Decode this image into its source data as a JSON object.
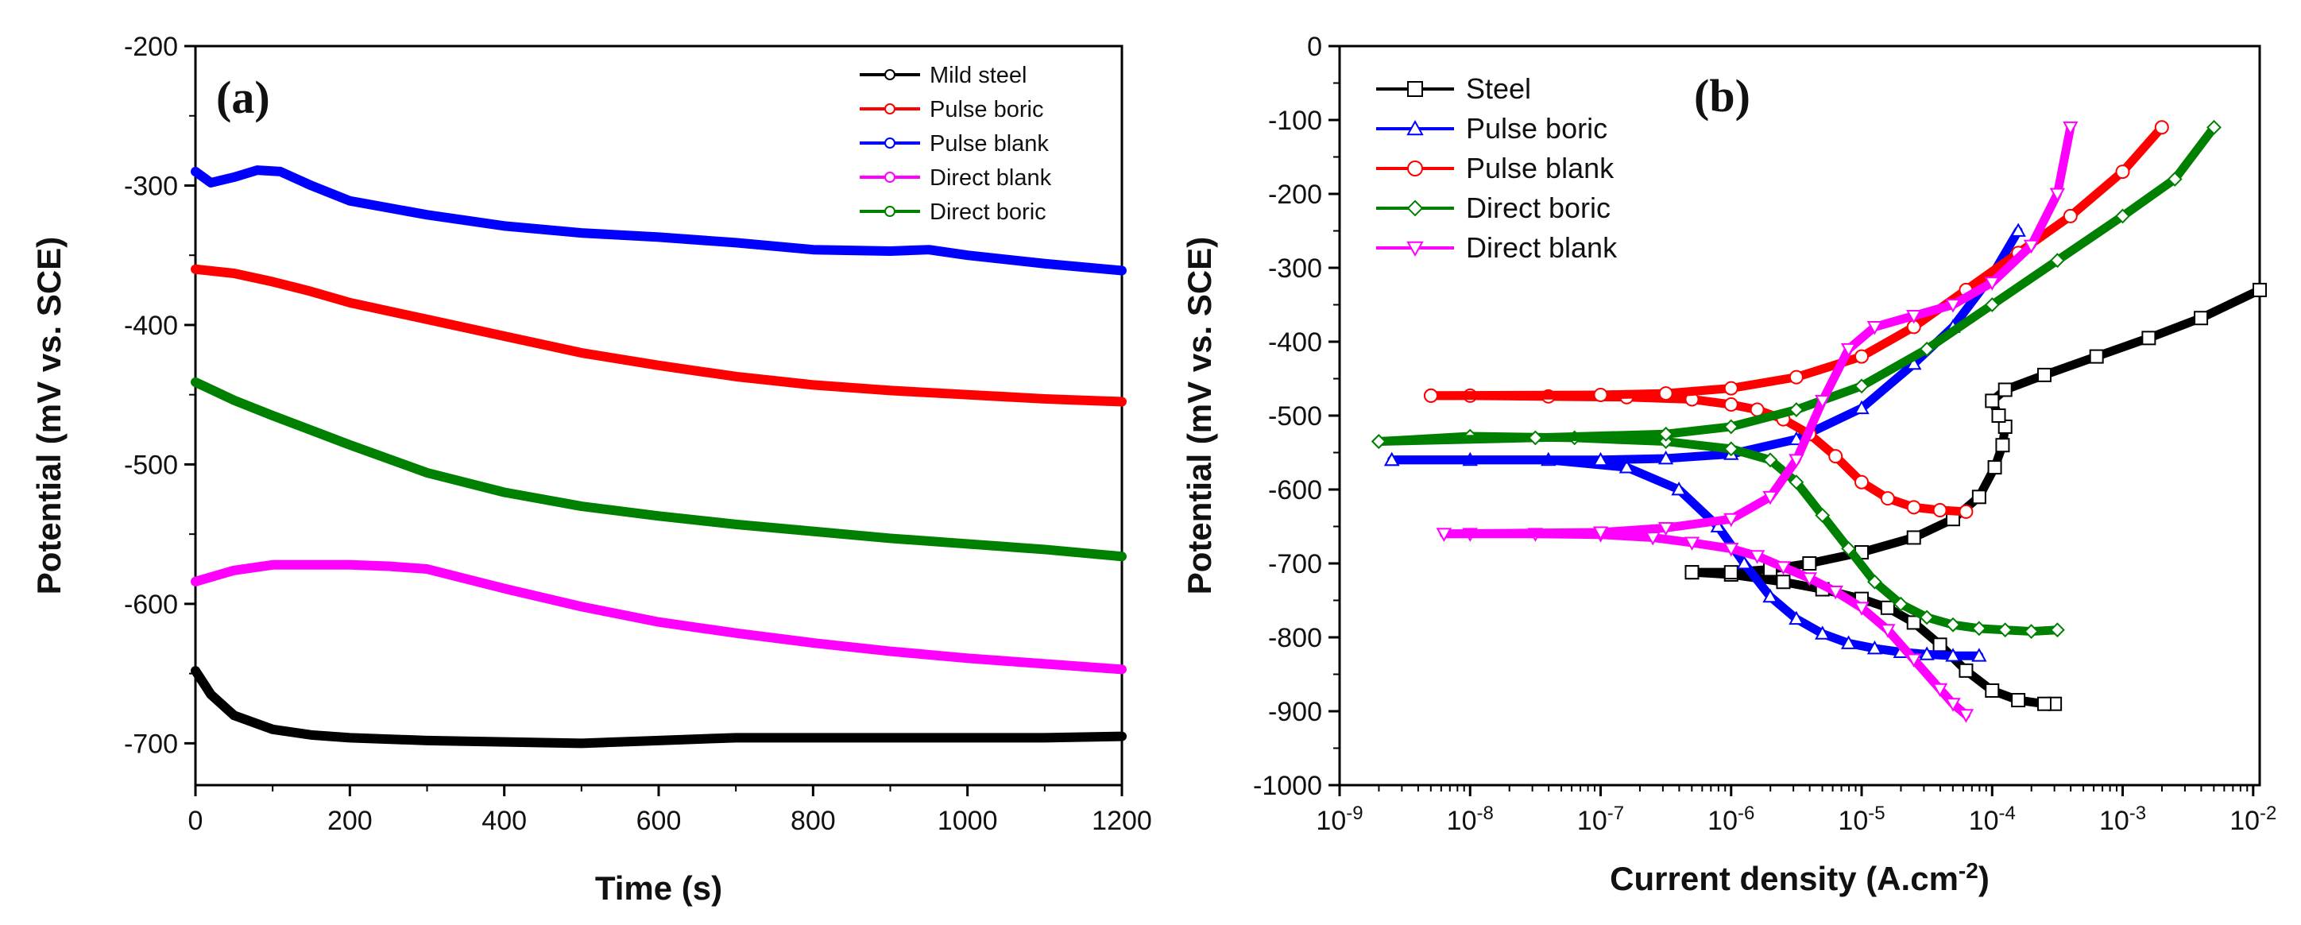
{
  "chart_data": [
    {
      "panel": "(a)",
      "type": "line",
      "xlabel": "Time (s)",
      "ylabel": "Potential (mV vs. SCE)",
      "xlim": [
        0,
        1200
      ],
      "ylim": [
        -730,
        -200
      ],
      "xticks": [
        "0",
        "200",
        "400",
        "600",
        "800",
        "1000",
        "1200"
      ],
      "yticks": [
        "-200",
        "-300",
        "-400",
        "-500",
        "-600",
        "-700"
      ],
      "legend_position": "top-right",
      "series": [
        {
          "name": "Mild steel",
          "color": "#000000",
          "x": [
            0,
            20,
            50,
            100,
            150,
            200,
            300,
            400,
            500,
            600,
            700,
            800,
            900,
            1000,
            1100,
            1200
          ],
          "y": [
            -648,
            -665,
            -680,
            -690,
            -694,
            -696,
            -698,
            -699,
            -700,
            -698,
            -696,
            -696,
            -696,
            -696,
            -696,
            -695
          ]
        },
        {
          "name": "Pulse boric",
          "color": "#ff0000",
          "x": [
            0,
            50,
            100,
            150,
            200,
            300,
            400,
            500,
            600,
            700,
            800,
            900,
            1000,
            1100,
            1200
          ],
          "y": [
            -360,
            -363,
            -369,
            -376,
            -384,
            -396,
            -408,
            -420,
            -429,
            -437,
            -443,
            -447,
            -450,
            -453,
            -455
          ]
        },
        {
          "name": "Pulse blank",
          "color": "#0000ff",
          "x": [
            0,
            20,
            50,
            80,
            110,
            150,
            200,
            300,
            400,
            500,
            600,
            700,
            800,
            900,
            950,
            1000,
            1100,
            1200
          ],
          "y": [
            -290,
            -298,
            -294,
            -289,
            -290,
            -300,
            -311,
            -321,
            -329,
            -334,
            -337,
            -341,
            -346,
            -347,
            -346,
            -350,
            -356,
            -361
          ]
        },
        {
          "name": "Direct blank",
          "color": "#ff00ff",
          "x": [
            0,
            50,
            100,
            150,
            200,
            250,
            300,
            400,
            500,
            600,
            700,
            800,
            900,
            1000,
            1100,
            1200
          ],
          "y": [
            -584,
            -576,
            -572,
            -572,
            -572,
            -573,
            -575,
            -589,
            -602,
            -613,
            -621,
            -628,
            -634,
            -639,
            -643,
            -647
          ]
        },
        {
          "name": "Direct boric",
          "color": "#008000",
          "x": [
            0,
            50,
            100,
            200,
            300,
            400,
            500,
            600,
            700,
            800,
            900,
            1000,
            1100,
            1200
          ],
          "y": [
            -441,
            -454,
            -465,
            -486,
            -506,
            -520,
            -530,
            -537,
            -543,
            -548,
            -553,
            -557,
            -561,
            -566
          ]
        }
      ]
    },
    {
      "panel": "(b)",
      "type": "line",
      "xscale": "log",
      "xlabel_main": "Current density (A.cm",
      "xlabel_sup": "-2",
      "xlabel_end": ")",
      "ylabel": "Potential (mV vs. SCE)",
      "xlim_log10": [
        -9,
        -1.95
      ],
      "ylim": [
        -1000,
        0
      ],
      "xticks": [
        {
          "b": "10",
          "e": "-9"
        },
        {
          "b": "10",
          "e": "-8"
        },
        {
          "b": "10",
          "e": "-7"
        },
        {
          "b": "10",
          "e": "-6"
        },
        {
          "b": "10",
          "e": "-5"
        },
        {
          "b": "10",
          "e": "-4"
        },
        {
          "b": "10",
          "e": "-3"
        },
        {
          "b": "10",
          "e": "-2"
        }
      ],
      "yticks": [
        "0",
        "-100",
        "-200",
        "-300",
        "-400",
        "-500",
        "-600",
        "-700",
        "-800",
        "-900",
        "-1000"
      ],
      "legend_position": "top-left",
      "series": [
        {
          "name": "Steel",
          "color": "#000000",
          "marker": "square",
          "cathodic": {
            "log_i": [
              -3.52,
              -3.6,
              -3.8,
              -4.0,
              -4.2,
              -4.4,
              -4.6,
              -4.8,
              -5.0,
              -5.3,
              -5.6,
              -6.0,
              -6.3
            ],
            "e": [
              -890,
              -890,
              -885,
              -872,
              -845,
              -810,
              -780,
              -760,
              -748,
              -735,
              -725,
              -715,
              -712
            ]
          },
          "anodic": {
            "log_i": [
              -6.3,
              -6.0,
              -5.7,
              -5.4,
              -5.0,
              -4.6,
              -4.3,
              -4.1,
              -3.98,
              -3.92,
              -3.9,
              -3.95,
              -4.0,
              -3.9,
              -3.6,
              -3.2,
              -2.8,
              -2.4,
              -1.95
            ],
            "e": [
              -712,
              -712,
              -708,
              -700,
              -685,
              -665,
              -640,
              -610,
              -570,
              -540,
              -515,
              -500,
              -480,
              -465,
              -445,
              -420,
              -395,
              -368,
              -330
            ]
          }
        },
        {
          "name": "Pulse boric",
          "color": "#0000ff",
          "marker": "triangle-up",
          "cathodic": {
            "log_i": [
              -4.1,
              -4.3,
              -4.5,
              -4.7,
              -4.9,
              -5.1,
              -5.3,
              -5.5,
              -5.7,
              -5.9,
              -6.1,
              -6.4,
              -6.8,
              -7.4,
              -8.0,
              -8.6
            ],
            "e": [
              -825,
              -825,
              -823,
              -820,
              -815,
              -808,
              -795,
              -775,
              -745,
              -700,
              -650,
              -600,
              -570,
              -560,
              -560,
              -560
            ]
          },
          "anodic": {
            "log_i": [
              -8.6,
              -7.0,
              -6.5,
              -6.0,
              -5.5,
              -5.0,
              -4.6,
              -4.3,
              -4.0,
              -3.8
            ],
            "e": [
              -560,
              -560,
              -558,
              -552,
              -532,
              -490,
              -430,
              -380,
              -310,
              -250
            ]
          }
        },
        {
          "name": "Pulse blank",
          "color": "#ff0000",
          "marker": "circle",
          "cathodic": {
            "log_i": [
              -4.2,
              -4.4,
              -4.6,
              -4.8,
              -5.0,
              -5.2,
              -5.4,
              -5.6,
              -5.8,
              -6.0,
              -6.3,
              -6.8,
              -7.4,
              -8.0,
              -8.3
            ],
            "e": [
              -630,
              -628,
              -624,
              -612,
              -590,
              -555,
              -525,
              -505,
              -492,
              -485,
              -478,
              -475,
              -474,
              -473,
              -473
            ]
          },
          "anodic": {
            "log_i": [
              -8.3,
              -7.0,
              -6.5,
              -6.0,
              -5.5,
              -5.0,
              -4.6,
              -4.2,
              -3.8,
              -3.4,
              -3.0,
              -2.7
            ],
            "e": [
              -473,
              -472,
              -470,
              -463,
              -448,
              -420,
              -380,
              -330,
              -280,
              -230,
              -170,
              -110
            ]
          }
        },
        {
          "name": "Direct boric",
          "color": "#008000",
          "marker": "diamond",
          "cathodic": {
            "log_i": [
              -3.5,
              -3.7,
              -3.9,
              -4.1,
              -4.3,
              -4.5,
              -4.7,
              -4.9,
              -5.1,
              -5.3,
              -5.5,
              -5.7,
              -6.0,
              -6.5,
              -7.2,
              -8.0,
              -8.7
            ],
            "e": [
              -790,
              -792,
              -790,
              -788,
              -783,
              -773,
              -755,
              -725,
              -680,
              -635,
              -590,
              -560,
              -545,
              -535,
              -530,
              -528,
              -535
            ]
          },
          "anodic": {
            "log_i": [
              -8.7,
              -7.5,
              -6.5,
              -6.0,
              -5.5,
              -5.0,
              -4.5,
              -4.0,
              -3.5,
              -3.0,
              -2.6,
              -2.3
            ],
            "e": [
              -535,
              -530,
              -525,
              -515,
              -492,
              -460,
              -410,
              -350,
              -290,
              -230,
              -180,
              -110
            ]
          }
        },
        {
          "name": "Direct blank",
          "color": "#ff00ff",
          "marker": "triangle-down",
          "cathodic": {
            "log_i": [
              -4.2,
              -4.3,
              -4.4,
              -4.6,
              -4.8,
              -5.0,
              -5.2,
              -5.4,
              -5.6,
              -5.8,
              -6.0,
              -6.3,
              -6.6,
              -7.0,
              -7.5,
              -8.0,
              -8.2
            ],
            "e": [
              -905,
              -890,
              -870,
              -830,
              -790,
              -760,
              -738,
              -720,
              -705,
              -690,
              -680,
              -672,
              -665,
              -661,
              -660,
              -660,
              -660
            ]
          },
          "anodic": {
            "log_i": [
              -8.2,
              -7.0,
              -6.5,
              -6.0,
              -5.7,
              -5.5,
              -5.3,
              -5.1,
              -4.9,
              -4.6,
              -4.3,
              -4.0,
              -3.7,
              -3.5,
              -3.4
            ],
            "e": [
              -660,
              -658,
              -652,
              -640,
              -610,
              -560,
              -480,
              -410,
              -380,
              -365,
              -350,
              -320,
              -270,
              -200,
              -110
            ]
          }
        }
      ]
    }
  ]
}
